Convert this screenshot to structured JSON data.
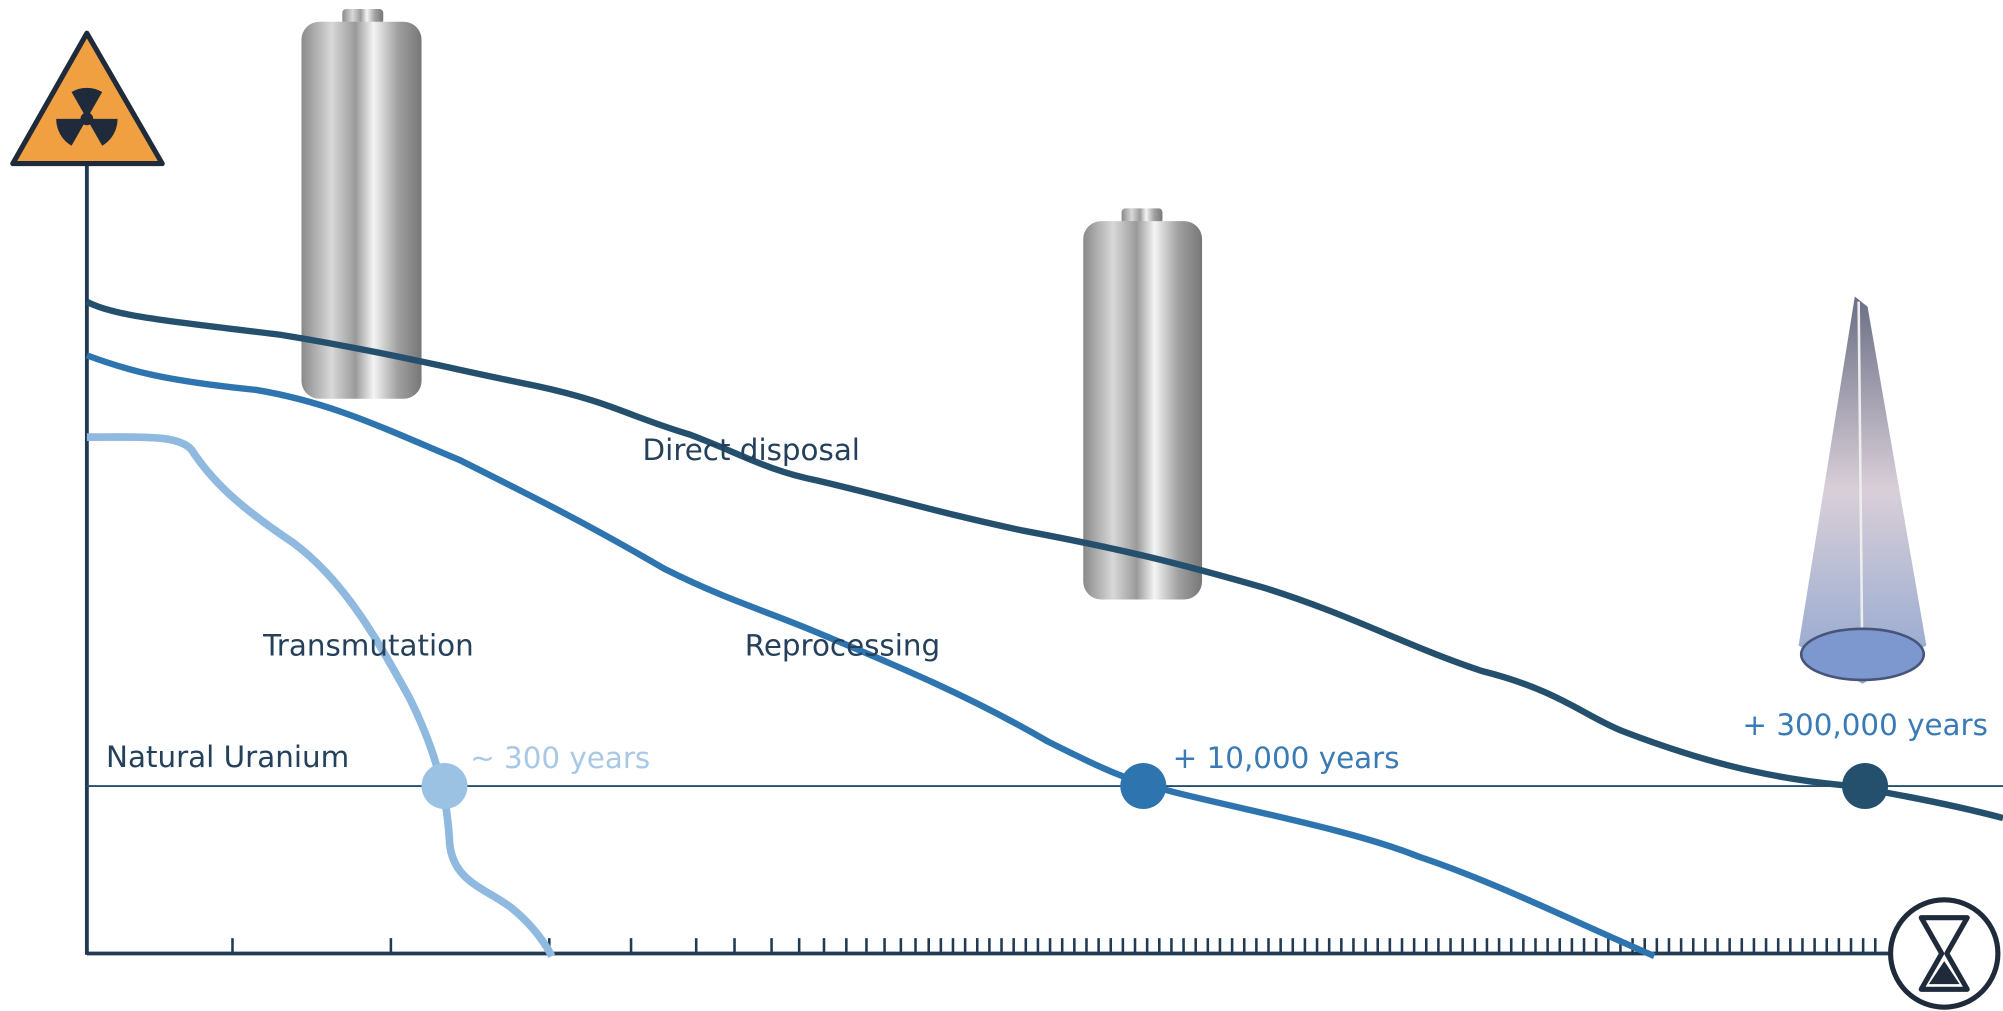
{
  "labels": {
    "direct": "Direct disposal",
    "reprocessing": "Reprocessing",
    "transmutation": "Transmutation",
    "uranium": "Natural Uranium"
  },
  "milestones": {
    "transmutation": "~ 300 years",
    "reprocessing": "+ 10,000 years",
    "direct": "+ 300,000 years"
  }
}
